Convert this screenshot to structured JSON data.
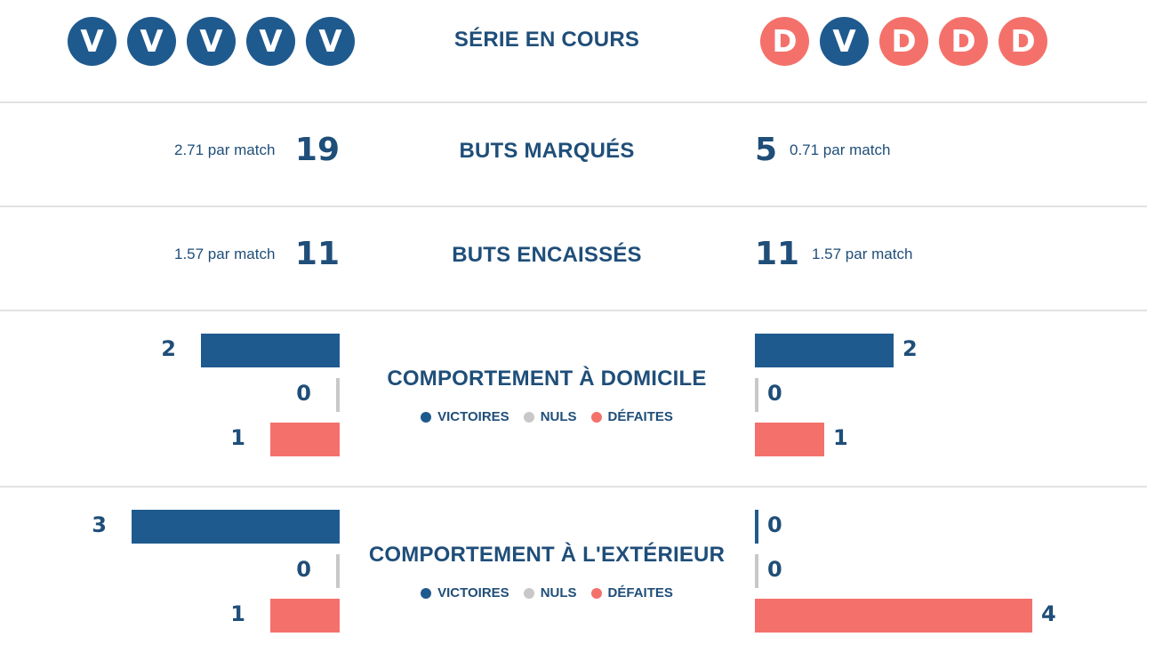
{
  "colors": {
    "win": "#1f5a8f",
    "draw": "#c8c8c8",
    "loss": "#f4716b",
    "text": "#1f4e79"
  },
  "streak": {
    "title": "SÉRIE EN COURS",
    "left": [
      "V",
      "V",
      "V",
      "V",
      "V"
    ],
    "right": [
      "D",
      "V",
      "D",
      "D",
      "D"
    ]
  },
  "scored": {
    "title": "BUTS MARQUÉS",
    "left": {
      "total": "19",
      "per_match": "2.71 par match"
    },
    "right": {
      "total": "5",
      "per_match": "0.71 par match"
    }
  },
  "conceded": {
    "title": "BUTS ENCAISSÉS",
    "left": {
      "total": "11",
      "per_match": "1.57 par match"
    },
    "right": {
      "total": "11",
      "per_match": "1.57 par match"
    }
  },
  "legend": {
    "wins": "VICTOIRES",
    "draws": "NULS",
    "losses": "DÉFAITES"
  },
  "home": {
    "title": "COMPORTEMENT À DOMICILE",
    "left": {
      "wins": 2,
      "draws": 0,
      "losses": 1
    },
    "right": {
      "wins": 2,
      "draws": 0,
      "losses": 1
    }
  },
  "away": {
    "title": "COMPORTEMENT À L'EXTÉRIEUR",
    "left": {
      "wins": 3,
      "draws": 0,
      "losses": 1
    },
    "right": {
      "wins": 0,
      "draws": 0,
      "losses": 4
    }
  }
}
